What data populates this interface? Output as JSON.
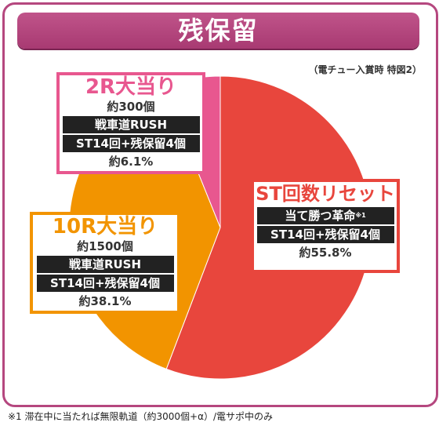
{
  "header": {
    "title": "残保留"
  },
  "subnote": "（電チュー入賞時 特図2）",
  "chart_data": {
    "type": "pie",
    "title": "残保留",
    "slices": [
      {
        "label": "ST回数リセット",
        "value": 55.8,
        "color": "#e8463d"
      },
      {
        "label": "10R大当り",
        "value": 38.1,
        "color": "#f29400"
      },
      {
        "label": "2R大当り",
        "value": 6.1,
        "color": "#e8578f"
      }
    ]
  },
  "callouts": {
    "two_r": {
      "title": "2R大当り",
      "count": "約300個",
      "line1": "戦車道RUSH",
      "line2": "ST14回+残保留4個",
      "pct": "約6.1%"
    },
    "ten_r": {
      "title": "10R大当り",
      "count": "約1500個",
      "line1": "戦車道RUSH",
      "line2": "ST14回+残保留4個",
      "pct": "約38.1%"
    },
    "st": {
      "title": "ST回数リセット",
      "line1": "当て勝つ革命",
      "line1_note": "※1",
      "line2": "ST14回+残保留4個",
      "pct": "約55.8%"
    }
  },
  "footnote": "※1 滞在中に当たれば無限軌道（約3000個+α）/電サポ中のみ"
}
